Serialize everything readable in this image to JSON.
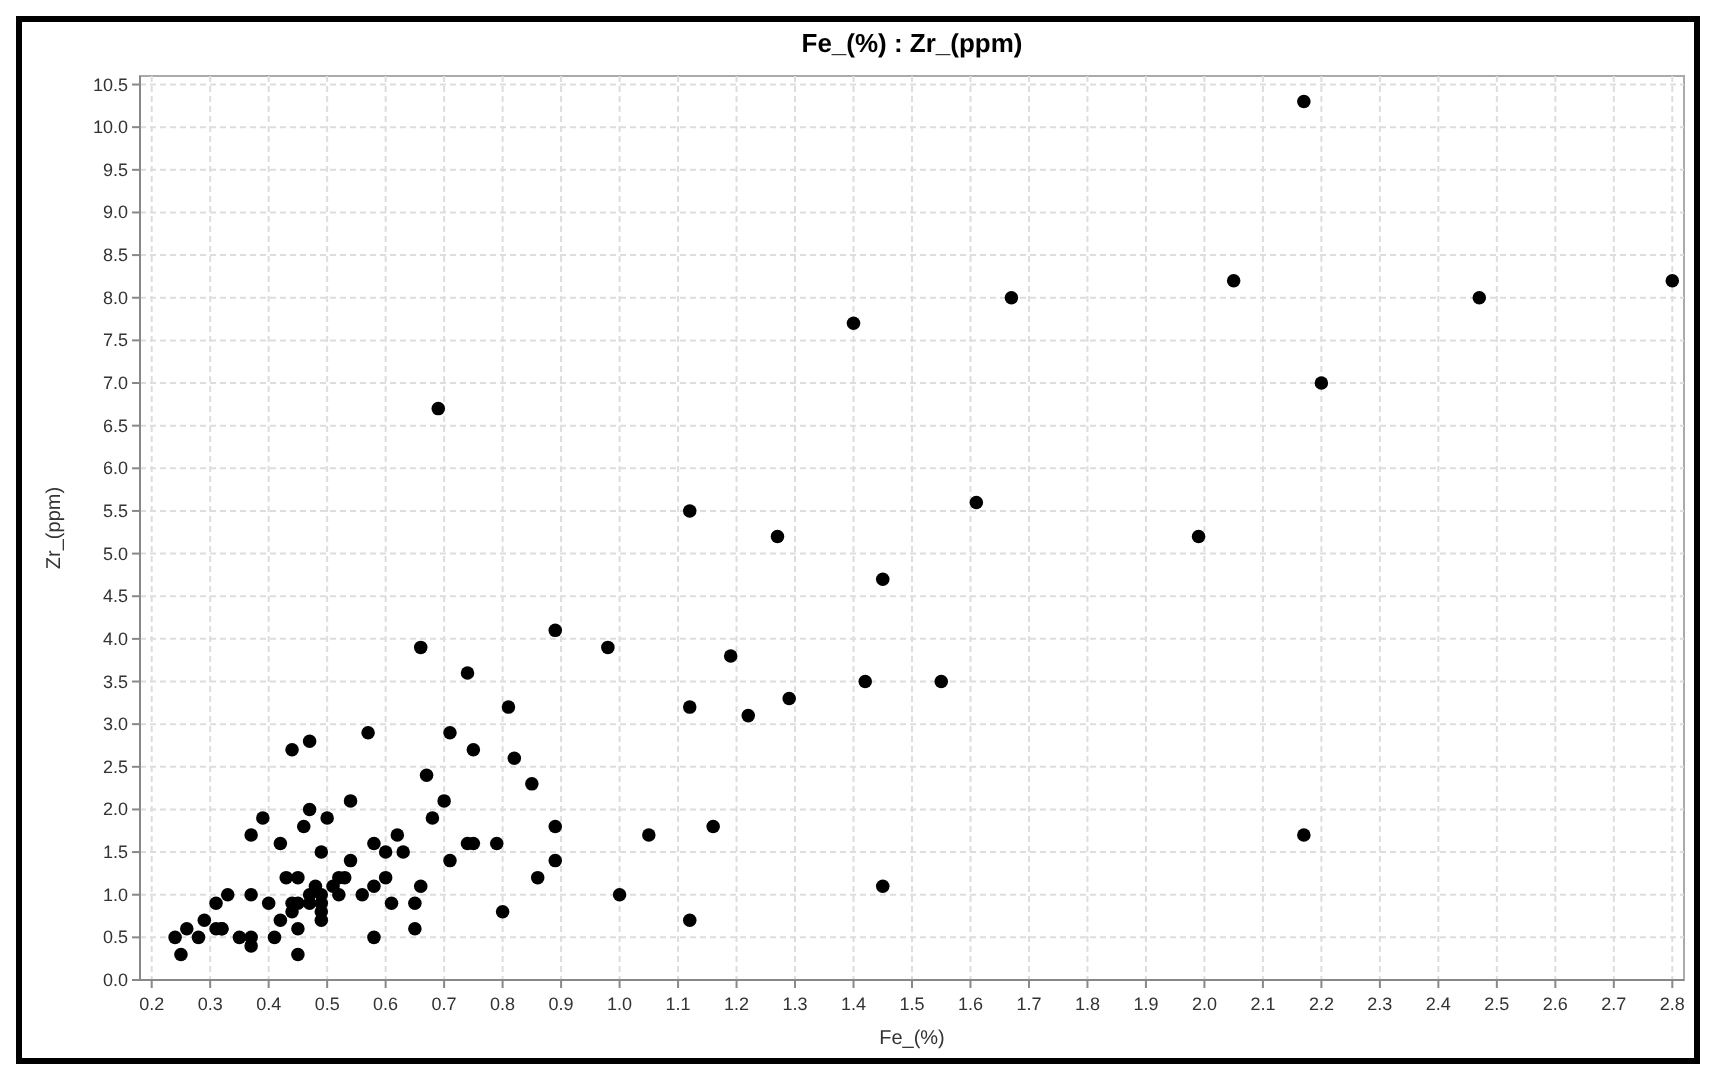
{
  "chart_data": {
    "type": "scatter",
    "title": "Fe_(%) : Zr_(ppm)",
    "xlabel": "Fe_(%)",
    "ylabel": "Zr_(ppm)",
    "xlim": [
      0.18,
      2.82
    ],
    "ylim": [
      0,
      10.6
    ],
    "xticks": [
      0.2,
      0.3,
      0.4,
      0.5,
      0.6,
      0.7,
      0.8,
      0.9,
      {
        "value": 1,
        "label": "1.0"
      },
      1.1,
      1.2,
      1.3,
      1.4,
      1.5,
      1.6,
      1.7,
      1.8,
      1.9,
      {
        "value": 2,
        "label": "2.0"
      },
      2.1,
      2.2,
      2.3,
      2.4,
      2.5,
      2.6,
      2.7,
      2.8
    ],
    "yticks": [
      {
        "value": 0,
        "label": "0.0"
      },
      0.5,
      {
        "value": 1,
        "label": "1.0"
      },
      1.5,
      {
        "value": 2,
        "label": "2.0"
      },
      2.5,
      {
        "value": 3,
        "label": "3.0"
      },
      3.5,
      {
        "value": 4,
        "label": "4.0"
      },
      4.5,
      {
        "value": 5,
        "label": "5.0"
      },
      5.5,
      {
        "value": 6,
        "label": "6.0"
      },
      6.5,
      {
        "value": 7,
        "label": "7.0"
      },
      7.5,
      {
        "value": 8,
        "label": "8.0"
      },
      8.5,
      {
        "value": 9,
        "label": "9.0"
      },
      9.5,
      {
        "value": 10,
        "label": "10.0"
      },
      10.5
    ],
    "grid": true,
    "marker": "circle",
    "series": [
      {
        "color": "#000000",
        "x": [
          0.24,
          0.25,
          0.26,
          0.28,
          0.29,
          0.31,
          0.31,
          0.32,
          0.32,
          0.33,
          0.35,
          0.37,
          0.37,
          0.37,
          0.37,
          0.39,
          0.4,
          0.41,
          0.42,
          0.42,
          0.43,
          0.44,
          0.44,
          0.44,
          0.45,
          0.45,
          0.45,
          0.45,
          0.46,
          0.47,
          0.47,
          0.47,
          0.47,
          0.48,
          0.49,
          0.49,
          0.49,
          0.49,
          0.49,
          0.5,
          0.51,
          0.52,
          0.53,
          0.52,
          0.54,
          0.54,
          0.56,
          0.57,
          0.58,
          0.58,
          0.58,
          0.6,
          0.6,
          0.61,
          0.62,
          0.63,
          0.65,
          0.65,
          0.66,
          0.67,
          0.68,
          0.7,
          0.71,
          0.71,
          0.74,
          0.75,
          0.75,
          0.79,
          0.8,
          0.81,
          0.82,
          0.85,
          0.86,
          0.89,
          0.89,
          1.0,
          0.69,
          1.12,
          1.27,
          0.89,
          0.98,
          0.66,
          1.19,
          1.42,
          0.74,
          1.12,
          1.29,
          1.22,
          1.05,
          1.16,
          1.12,
          2.17,
          1.4,
          1.67,
          2.05,
          2.47,
          2.8,
          2.2,
          1.61,
          1.99,
          1.45,
          1.55,
          2.17,
          1.45
        ],
        "values": [
          0.5,
          0.3,
          0.6,
          0.5,
          0.7,
          0.9,
          0.6,
          0.6,
          0.6,
          1.0,
          0.5,
          1.7,
          1.0,
          0.5,
          0.4,
          1.9,
          0.9,
          0.5,
          1.6,
          0.7,
          1.2,
          2.7,
          0.9,
          0.8,
          1.2,
          0.9,
          0.6,
          0.3,
          1.8,
          2.8,
          2.0,
          1.0,
          0.9,
          1.1,
          1.5,
          1.0,
          0.9,
          0.8,
          0.7,
          1.9,
          1.1,
          1.2,
          1.2,
          1.0,
          2.1,
          1.4,
          1.0,
          2.9,
          1.6,
          1.1,
          0.5,
          1.5,
          1.2,
          0.9,
          1.7,
          1.5,
          0.9,
          0.6,
          1.1,
          2.4,
          1.9,
          2.1,
          2.9,
          1.4,
          1.6,
          1.6,
          2.7,
          1.6,
          0.8,
          3.2,
          2.6,
          2.3,
          1.2,
          1.8,
          1.4,
          1.0,
          6.7,
          5.5,
          5.2,
          4.1,
          3.9,
          3.9,
          3.8,
          3.5,
          3.6,
          3.2,
          3.3,
          3.1,
          1.7,
          1.8,
          0.7,
          10.3,
          7.7,
          8.0,
          8.2,
          8.0,
          8.2,
          7.0,
          5.6,
          5.2,
          4.7,
          3.5,
          1.7,
          1.1
        ]
      }
    ]
  }
}
